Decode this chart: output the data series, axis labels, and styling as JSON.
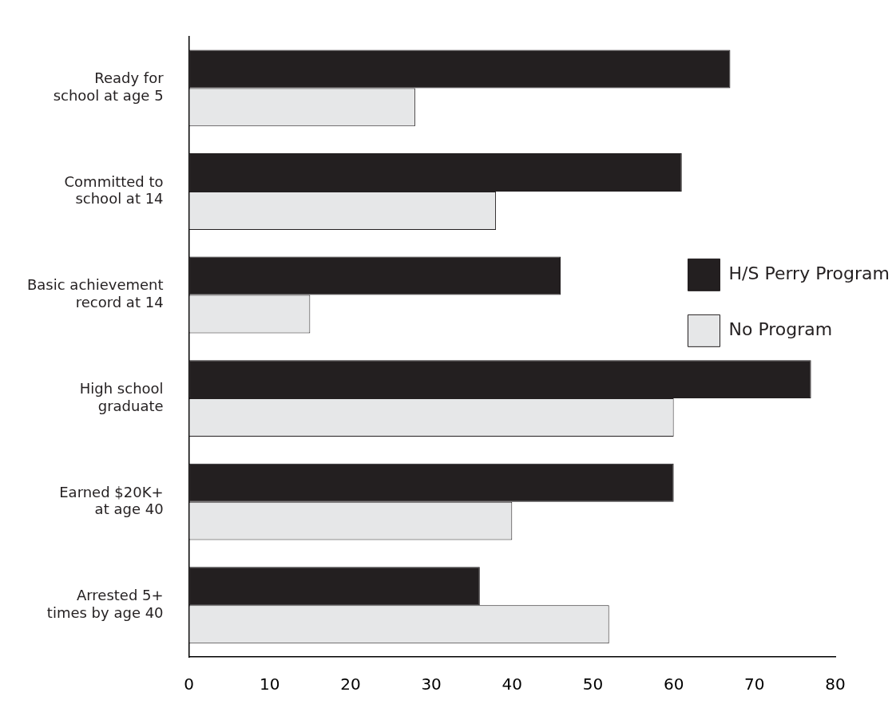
{
  "chart_data": {
    "type": "bar",
    "orientation": "horizontal",
    "categories": [
      "Ready for school at age 5",
      "Committed to school at 14",
      "Basic achievement record at 14",
      "High school graduate",
      "Earned $20K+ at age 40",
      "Arrested 5+ times by age 40"
    ],
    "series": [
      {
        "name": "H/S Perry Program",
        "color": "#231f20",
        "values": [
          67,
          61,
          46,
          77,
          60,
          36
        ]
      },
      {
        "name": "No Program",
        "color": "#e6e7e8",
        "values": [
          28,
          38,
          15,
          60,
          40,
          52
        ]
      }
    ],
    "xlim": [
      0,
      80
    ],
    "xticks": [
      0,
      10,
      20,
      30,
      40,
      50,
      60,
      70,
      80
    ],
    "grid": false,
    "legend": "right"
  }
}
